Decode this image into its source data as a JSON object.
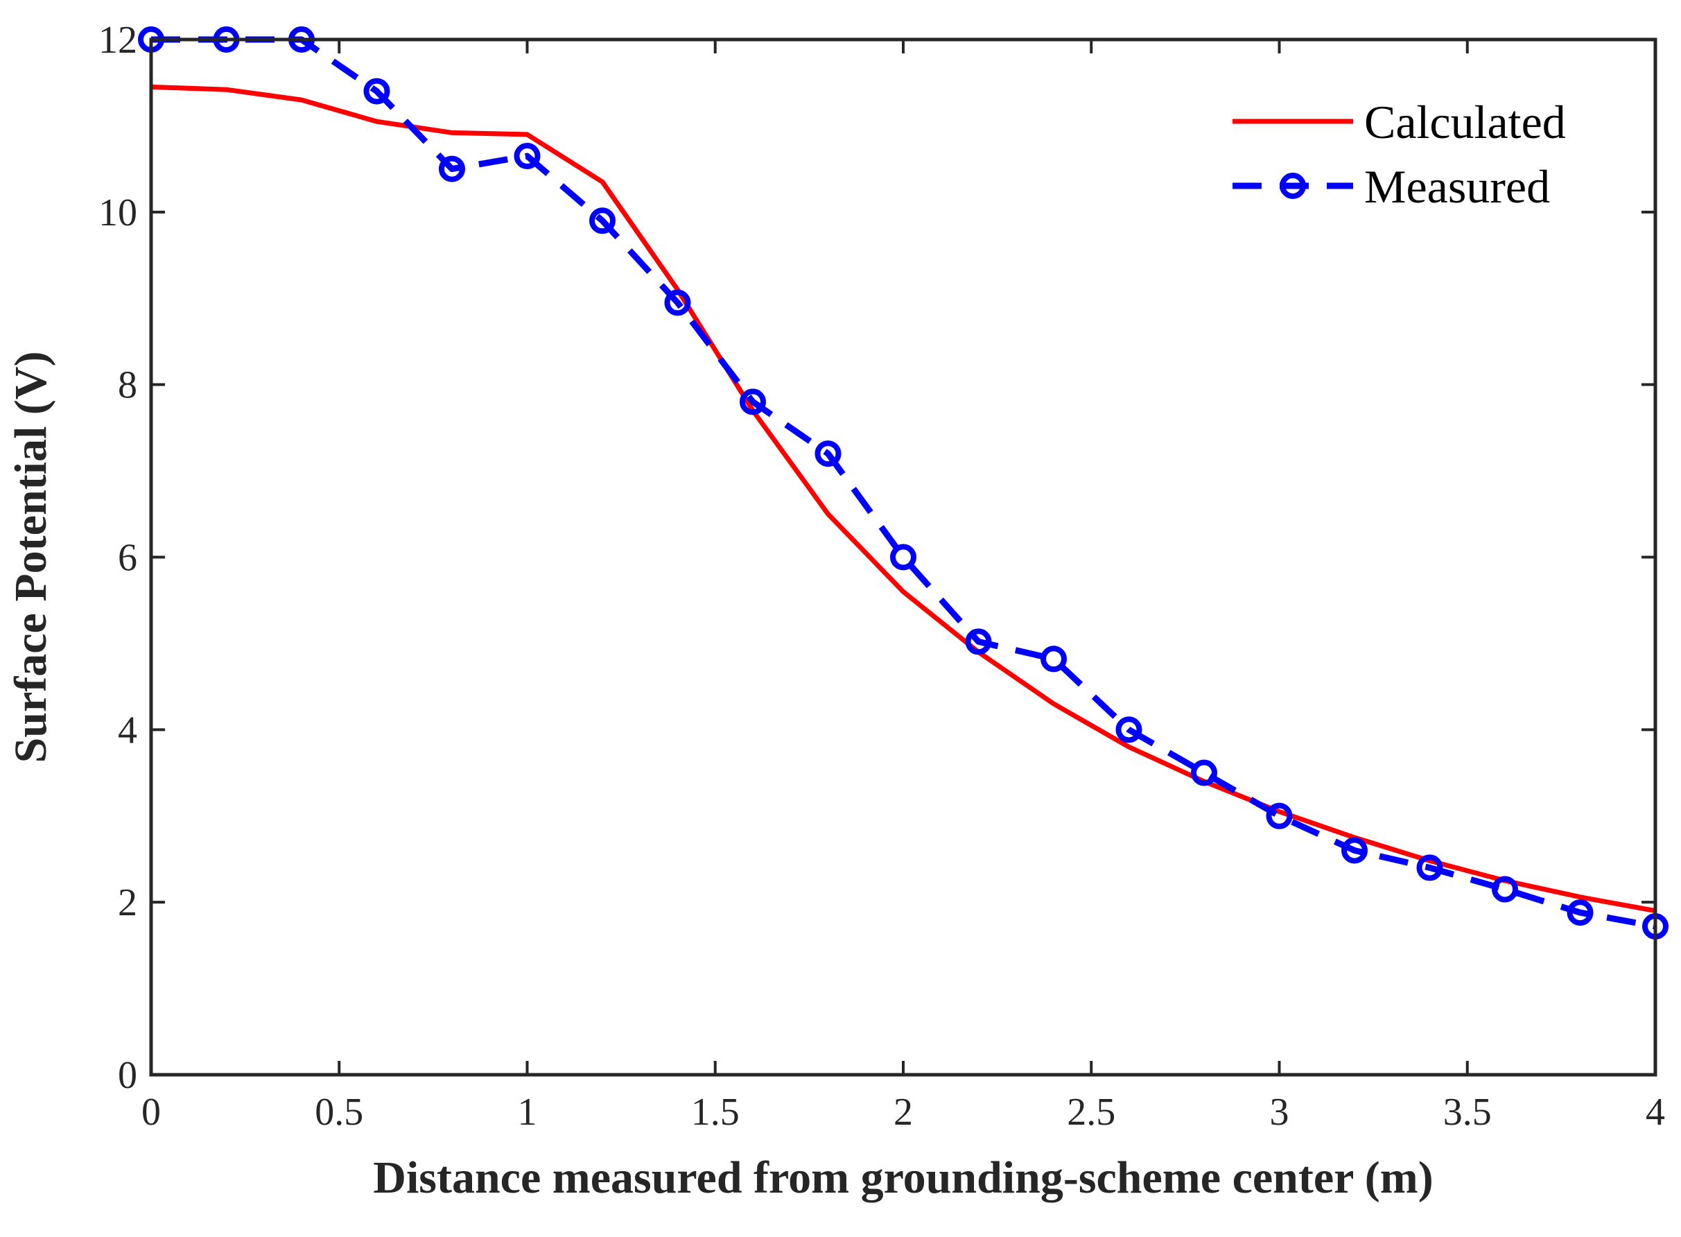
{
  "chart_data": {
    "type": "line",
    "xlabel": "Distance measured from grounding-scheme center (m)",
    "ylabel": "Surface Potential (V)",
    "xlim": [
      0,
      4
    ],
    "ylim": [
      0,
      12
    ],
    "x_ticks": [
      0,
      0.5,
      1,
      1.5,
      2,
      2.5,
      3,
      3.5,
      4
    ],
    "x_tick_labels": [
      "0",
      "0.5",
      "1",
      "1.5",
      "2",
      "2.5",
      "3",
      "3.5",
      "4"
    ],
    "y_ticks": [
      0,
      2,
      4,
      6,
      8,
      10,
      12
    ],
    "y_tick_labels": [
      "0",
      "2",
      "4",
      "6",
      "8",
      "10",
      "12"
    ],
    "grid": false,
    "legend_position": "top-right",
    "series": [
      {
        "name": "Calculated",
        "color": "#ff0000",
        "style": "solid",
        "marker": "none",
        "x": [
          0,
          0.2,
          0.4,
          0.6,
          0.8,
          1.0,
          1.2,
          1.4,
          1.6,
          1.8,
          2.0,
          2.2,
          2.4,
          2.6,
          2.8,
          3.0,
          3.2,
          3.4,
          3.6,
          3.8,
          4.0
        ],
        "y": [
          11.45,
          11.42,
          11.3,
          11.05,
          10.92,
          10.9,
          10.35,
          9.1,
          7.7,
          6.5,
          5.6,
          4.9,
          4.3,
          3.8,
          3.4,
          3.05,
          2.75,
          2.48,
          2.25,
          2.06,
          1.9
        ]
      },
      {
        "name": "Measured",
        "color": "#0000ff",
        "style": "dashed",
        "marker": "circle",
        "x": [
          0,
          0.2,
          0.4,
          0.6,
          0.8,
          1.0,
          1.2,
          1.4,
          1.6,
          1.8,
          2.0,
          2.2,
          2.4,
          2.6,
          2.8,
          3.0,
          3.2,
          3.4,
          3.6,
          3.8,
          4.0
        ],
        "y": [
          12.0,
          12.0,
          12.0,
          11.4,
          10.5,
          10.65,
          9.9,
          8.95,
          7.8,
          7.2,
          6.0,
          5.02,
          4.82,
          4.0,
          3.5,
          3.0,
          2.6,
          2.4,
          2.15,
          1.88,
          1.72
        ]
      }
    ]
  }
}
